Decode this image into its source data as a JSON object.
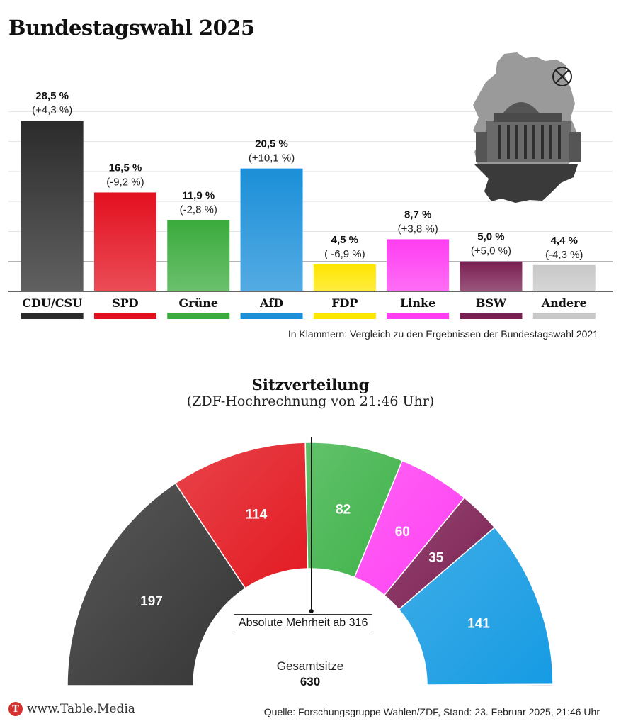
{
  "title": "Bundestagswahl 2025",
  "note": "In Klammern: Vergleich zu den Ergebnissen der Bundestagswahl 2021",
  "source": "Quelle: Forschungsgruppe Wahlen/ZDF, Stand: 23. Februar 2025, 21:46 Uhr",
  "logo_text": "www.Table.Media",
  "logo_letter": "T",
  "seats": {
    "title": "Sitzverteilung",
    "subtitle": "(ZDF-Hochrechnung von 21:46 Uhr)",
    "majority_label": "Absolute Mehrheit ab 316",
    "total_label": "Gesamtsitze",
    "total_value": "630"
  },
  "chart_data": [
    {
      "type": "bar",
      "title": "Bundestagswahl 2025",
      "categories": [
        "CDU/CSU",
        "SPD",
        "Grüne",
        "AfD",
        "FDP",
        "Linke",
        "BSW",
        "Andere"
      ],
      "values": [
        28.5,
        16.5,
        11.9,
        20.5,
        4.5,
        8.7,
        5.0,
        4.4
      ],
      "value_labels": [
        "28,5 %",
        "16,5 %",
        "11,9 %",
        "20,5 %",
        "4,5 %",
        "8,7 %",
        "5,0 %",
        "4,4 %"
      ],
      "change_labels": [
        "(+4,3 %)",
        "(-9,2 %)",
        "(-2,8 %)",
        "(+10,1 %)",
        "( -6,9 %)",
        "(+3,8 %)",
        "(+5,0 %)",
        "(-4,3 %)"
      ],
      "colors": [
        "#2b2b2b",
        "#e3101f",
        "#3aab3c",
        "#1b8fd8",
        "#ffe600",
        "#ff3df2",
        "#7a1f52",
        "#c8c8c8"
      ],
      "ylim": [
        0,
        35
      ],
      "grid": true,
      "reference_line": 5
    },
    {
      "type": "pie",
      "subtype": "half-donut",
      "title": "Sitzverteilung",
      "categories": [
        "CDU/CSU",
        "SPD",
        "Grüne",
        "Linke",
        "BSW",
        "AfD",
        "FDP"
      ],
      "values": [
        197,
        114,
        82,
        60,
        35,
        141,
        1
      ],
      "labels": [
        "197",
        "114",
        "82",
        "60",
        "35",
        "141",
        ""
      ],
      "colors": [
        "#353535",
        "#e31a22",
        "#3fb34a",
        "#ff40f3",
        "#7d2053",
        "#169be3",
        "#0b3a8f"
      ],
      "total": 630,
      "majority": 316
    }
  ]
}
